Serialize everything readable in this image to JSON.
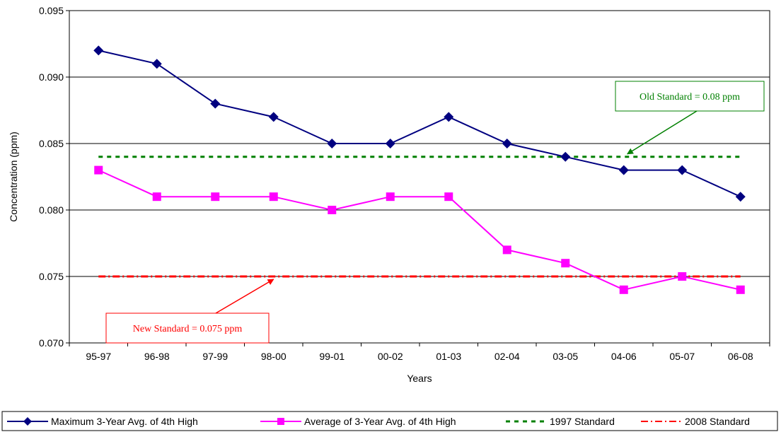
{
  "chart_data": {
    "type": "line",
    "title": "",
    "xlabel": "Years",
    "ylabel": "Concentration (ppm)",
    "categories": [
      "95-97",
      "96-98",
      "97-99",
      "98-00",
      "99-01",
      "00-02",
      "01-03",
      "02-04",
      "03-05",
      "04-06",
      "05-07",
      "06-08"
    ],
    "ylim": [
      0.07,
      0.095
    ],
    "yticks": [
      "0.070",
      "0.075",
      "0.080",
      "0.085",
      "0.090",
      "0.095"
    ],
    "grid": "horizontal",
    "legend_position": "bottom",
    "series": [
      {
        "name": "Maximum 3-Year Avg. of 4th High",
        "color": "#000080",
        "marker": "diamond",
        "values": [
          0.092,
          0.091,
          0.088,
          0.087,
          0.085,
          0.085,
          0.087,
          0.085,
          0.084,
          0.083,
          0.083,
          0.081
        ]
      },
      {
        "name": "Average of 3-Year Avg. of 4th High",
        "color": "#FF00FF",
        "marker": "square",
        "values": [
          0.083,
          0.081,
          0.081,
          0.081,
          0.08,
          0.081,
          0.081,
          0.077,
          0.076,
          0.074,
          0.075,
          0.074
        ]
      },
      {
        "name": "1997 Standard",
        "color": "#008000",
        "line_style": "dashed",
        "values": [
          0.084,
          0.084,
          0.084,
          0.084,
          0.084,
          0.084,
          0.084,
          0.084,
          0.084,
          0.084,
          0.084,
          0.084
        ]
      },
      {
        "name": "2008 Standard",
        "color": "#FF0000",
        "line_style": "dash-dot",
        "values": [
          0.075,
          0.075,
          0.075,
          0.075,
          0.075,
          0.075,
          0.075,
          0.075,
          0.075,
          0.075,
          0.075,
          0.075
        ]
      }
    ],
    "annotations": [
      {
        "text": "Old Standard = 0.08 ppm",
        "color": "#008000",
        "category": "04-06",
        "value": 0.084
      },
      {
        "text": "New Standard = 0.075 ppm",
        "color": "#FF0000",
        "category": "98-00",
        "value": 0.075
      }
    ]
  }
}
